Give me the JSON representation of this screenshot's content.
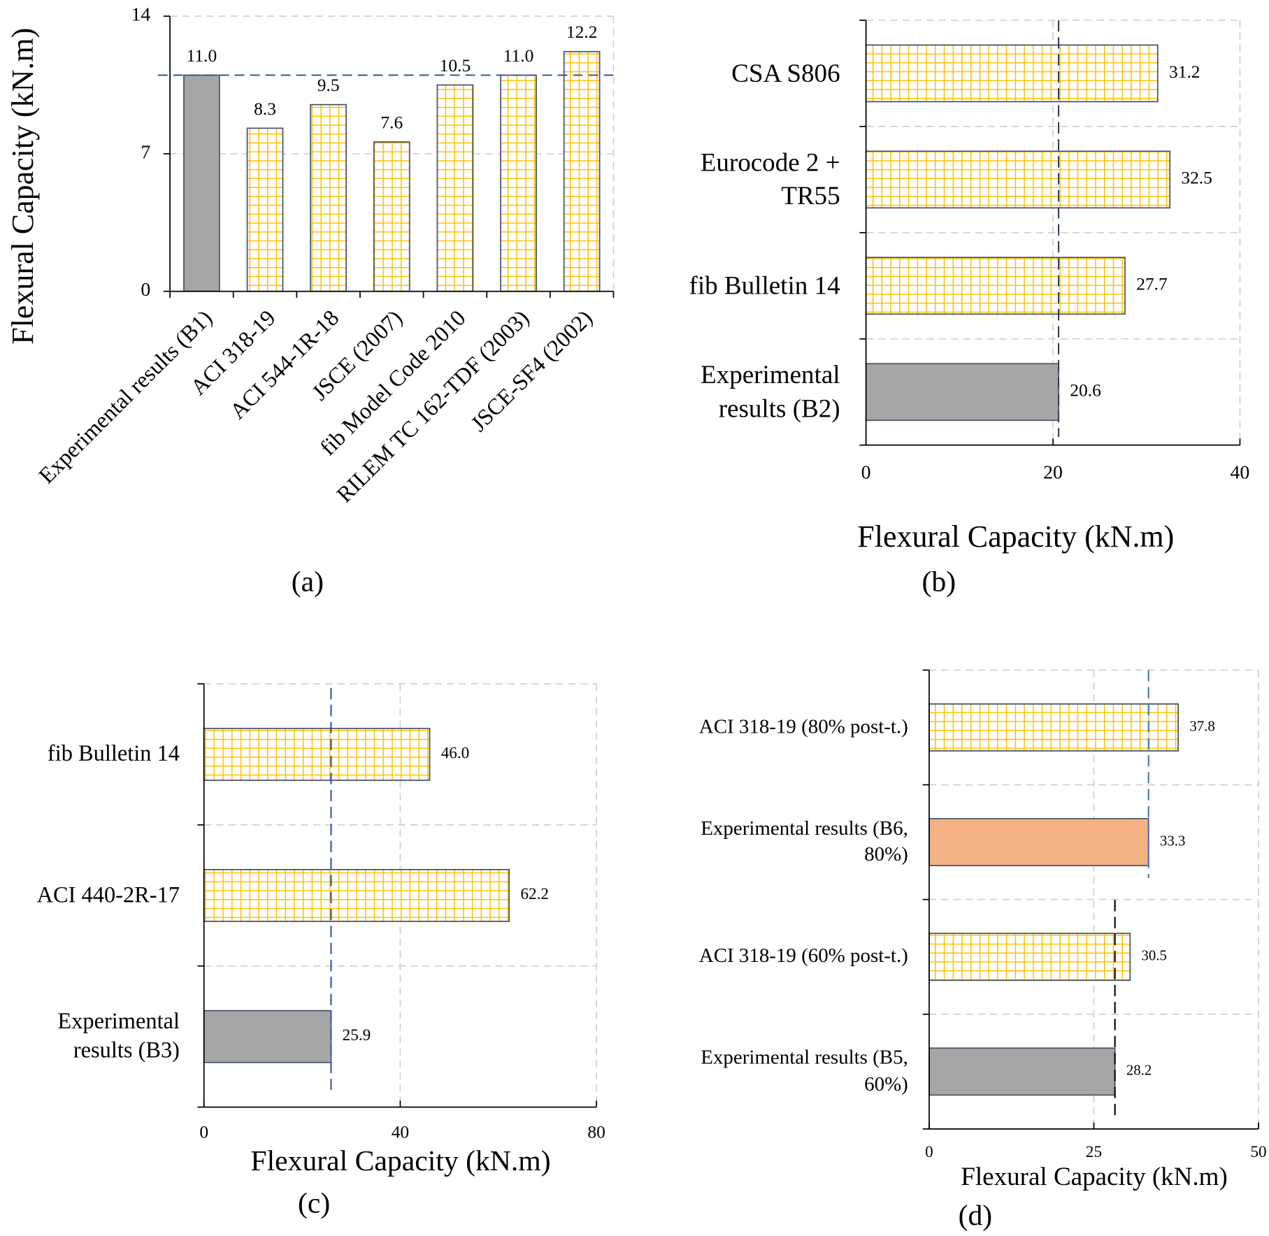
{
  "chart_data": [
    {
      "type": "bar",
      "caption": "(a)",
      "ylabel": "Flexural Capacity (kN.m)",
      "categories": [
        "Experimental results (B1)",
        "ACI 318-19",
        "ACI 544-1R-18",
        "JSCE (2007)",
        "fib Model Code 2010",
        "RILEM TC 162-TDF (2003)",
        "JSCE-SF4 (2002)"
      ],
      "values": [
        11.0,
        8.3,
        9.5,
        7.6,
        10.5,
        11.0,
        12.2
      ],
      "value_labels": [
        "11.0",
        "8.3",
        "9.5",
        "7.6",
        "10.5",
        "11.0",
        "12.2"
      ],
      "colors": [
        "#a6a6a6",
        "#ffc000",
        "#ffc000",
        "#ffc000",
        "#ffc000",
        "#ffc000",
        "#ffc000"
      ],
      "patterns": [
        "none",
        "grid",
        "grid",
        "grid",
        "grid",
        "grid",
        "grid"
      ],
      "ylim": [
        0,
        14
      ],
      "yticks": [
        0,
        7,
        14
      ],
      "grid": true,
      "reference_lines": [
        {
          "value": 11.0,
          "color": "#2f5597"
        }
      ]
    },
    {
      "type": "barh",
      "caption": "(b)",
      "xlabel": "Flexural Capacity (kN.m)",
      "categories": [
        "CSA S806",
        "Eurocode 2 +\nTR55",
        "fib Bulletin 14",
        "Experimental\nresults (B2)"
      ],
      "values": [
        31.2,
        32.5,
        27.7,
        20.6
      ],
      "colors": [
        "#ffc000",
        "#ffc000",
        "#ffc000",
        "#a6a6a6"
      ],
      "patterns": [
        "grid",
        "grid",
        "grid",
        "none"
      ],
      "xlim": [
        0,
        40
      ],
      "xticks": [
        0,
        20,
        40
      ],
      "grid": true,
      "reference_lines": [
        {
          "value": 20.6,
          "color": "#333f50"
        }
      ]
    },
    {
      "type": "barh",
      "caption": "(c)",
      "xlabel": "Flexural Capacity (kN.m)",
      "categories": [
        "fib Bulletin 14",
        "ACI 440-2R-17",
        "Experimental\nresults (B3)"
      ],
      "values": [
        46.0,
        62.2,
        25.9
      ],
      "value_labels": [
        "46.0",
        "62.2",
        "25.9"
      ],
      "colors": [
        "#ffc000",
        "#ffc000",
        "#a6a6a6"
      ],
      "patterns": [
        "grid",
        "grid",
        "none"
      ],
      "xlim": [
        0,
        80
      ],
      "xticks": [
        0,
        40,
        80
      ],
      "grid": true,
      "reference_lines": [
        {
          "value": 25.9,
          "color": "#2f5597"
        }
      ]
    },
    {
      "type": "barh",
      "caption": "(d)",
      "xlabel": "Flexural Capacity (kN.m)",
      "categories": [
        "ACI 318-19 (80% post-t.)",
        "Experimental results (B6,\n80%)",
        "ACI 318-19 (60% post-t.)",
        "Experimental results (B5,\n60%)"
      ],
      "values": [
        37.8,
        33.3,
        30.5,
        28.2
      ],
      "colors": [
        "#ffc000",
        "#f4b183",
        "#ffc000",
        "#a6a6a6"
      ],
      "patterns": [
        "grid",
        "none",
        "grid",
        "none"
      ],
      "xlim": [
        0,
        50
      ],
      "xticks": [
        0,
        25,
        50
      ],
      "grid": true,
      "reference_lines": [
        {
          "value": 33.3,
          "color": "#4472c4"
        },
        {
          "value": 28.2,
          "color": "#000000"
        }
      ]
    }
  ]
}
